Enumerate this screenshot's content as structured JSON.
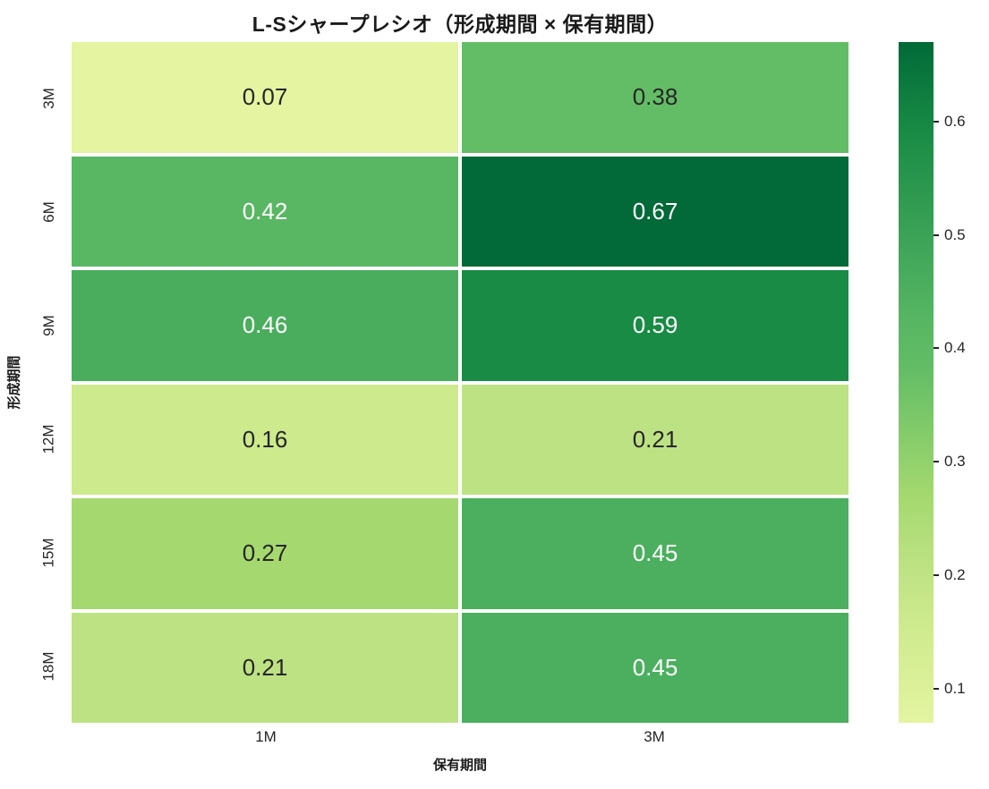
{
  "chart_data": {
    "type": "heatmap",
    "title": "L-Sシャープレシオ（形成期間 × 保有期間）",
    "xlabel": "保有期間",
    "ylabel": "形成期間",
    "x_categories": [
      "1M",
      "3M"
    ],
    "y_categories": [
      "3M",
      "6M",
      "9M",
      "12M",
      "15M",
      "18M"
    ],
    "values": [
      [
        0.07,
        0.38
      ],
      [
        0.42,
        0.67
      ],
      [
        0.46,
        0.59
      ],
      [
        0.16,
        0.21
      ],
      [
        0.27,
        0.45
      ],
      [
        0.21,
        0.45
      ]
    ],
    "cells": [
      [
        {
          "label": "0.07",
          "bg": "#e4f4a1",
          "fg": "dark"
        },
        {
          "label": "0.38",
          "bg": "#63bd66",
          "fg": "dark"
        }
      ],
      [
        {
          "label": "0.42",
          "bg": "#59b763",
          "fg": "light"
        },
        {
          "label": "0.67",
          "bg": "#016a38",
          "fg": "light"
        }
      ],
      [
        {
          "label": "0.46",
          "bg": "#4aad5e",
          "fg": "light"
        },
        {
          "label": "0.59",
          "bg": "#198b45",
          "fg": "light"
        }
      ],
      [
        {
          "label": "0.16",
          "bg": "#cdea8d",
          "fg": "dark"
        },
        {
          "label": "0.21",
          "bg": "#bde283",
          "fg": "dark"
        }
      ],
      [
        {
          "label": "0.27",
          "bg": "#a5d96f",
          "fg": "dark"
        },
        {
          "label": "0.45",
          "bg": "#4caf5f",
          "fg": "light"
        }
      ],
      [
        {
          "label": "0.21",
          "bg": "#bde283",
          "fg": "dark"
        },
        {
          "label": "0.45",
          "bg": "#4caf5f",
          "fg": "light"
        }
      ]
    ],
    "colormap": "YlGn",
    "vmin": 0.07,
    "vmax": 0.67,
    "legend_position": "right",
    "grid": false,
    "colorbar": {
      "tick_labels": [
        "0.6",
        "0.5",
        "0.4",
        "0.3",
        "0.2",
        "0.1"
      ],
      "tick_values": [
        0.6,
        0.5,
        0.4,
        0.3,
        0.2,
        0.1
      ],
      "gradient_stops": [
        {
          "pos": 0.0,
          "color": "#e4f4a1"
        },
        {
          "pos": 0.15,
          "color": "#cdea8d"
        },
        {
          "pos": 0.23,
          "color": "#bde283"
        },
        {
          "pos": 0.33,
          "color": "#a5d96f"
        },
        {
          "pos": 0.52,
          "color": "#63bd66"
        },
        {
          "pos": 0.58,
          "color": "#59b763"
        },
        {
          "pos": 0.65,
          "color": "#4aad5e"
        },
        {
          "pos": 0.87,
          "color": "#198b45"
        },
        {
          "pos": 1.0,
          "color": "#016a38"
        }
      ]
    }
  },
  "colors": {
    "background": "#ffffff",
    "title_text": "#1a1a1a",
    "tick_text": "#262626",
    "cell_text_dark": "#262626",
    "cell_text_light": "#ffffff",
    "gridline": "#ffffff"
  }
}
